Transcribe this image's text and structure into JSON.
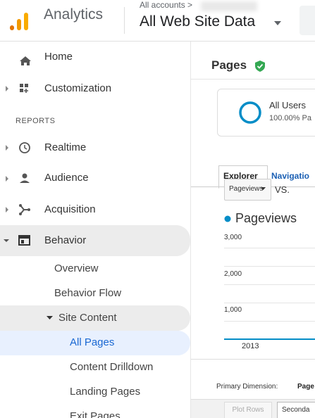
{
  "header": {
    "product": "Analytics",
    "breadcrumb": "All accounts >",
    "view": "All Web Site Data"
  },
  "nav": {
    "items": [
      "Home",
      "Customization"
    ],
    "section": "REPORTS",
    "reports": [
      "Realtime",
      "Audience",
      "Acquisition",
      "Behavior"
    ],
    "behavior": [
      "Overview",
      "Behavior Flow",
      "Site Content"
    ],
    "site_content": [
      "All Pages",
      "Content Drilldown",
      "Landing Pages",
      "Exit Pages"
    ]
  },
  "page": {
    "title": "Pages",
    "segment": {
      "name": "All Users",
      "detail": "100.00% Pa"
    },
    "tabs": [
      "Explorer",
      "Navigatio"
    ],
    "metric_select": "Pageviews",
    "vs": "VS.",
    "legend": "Pageviews",
    "y_labels": [
      "3,000",
      "2,000",
      "1,000"
    ],
    "x_label": "2013",
    "primary_dimension": "Primary Dimension:",
    "dimension": "Page",
    "buttons": [
      "Plot Rows",
      "Seconda"
    ]
  }
}
